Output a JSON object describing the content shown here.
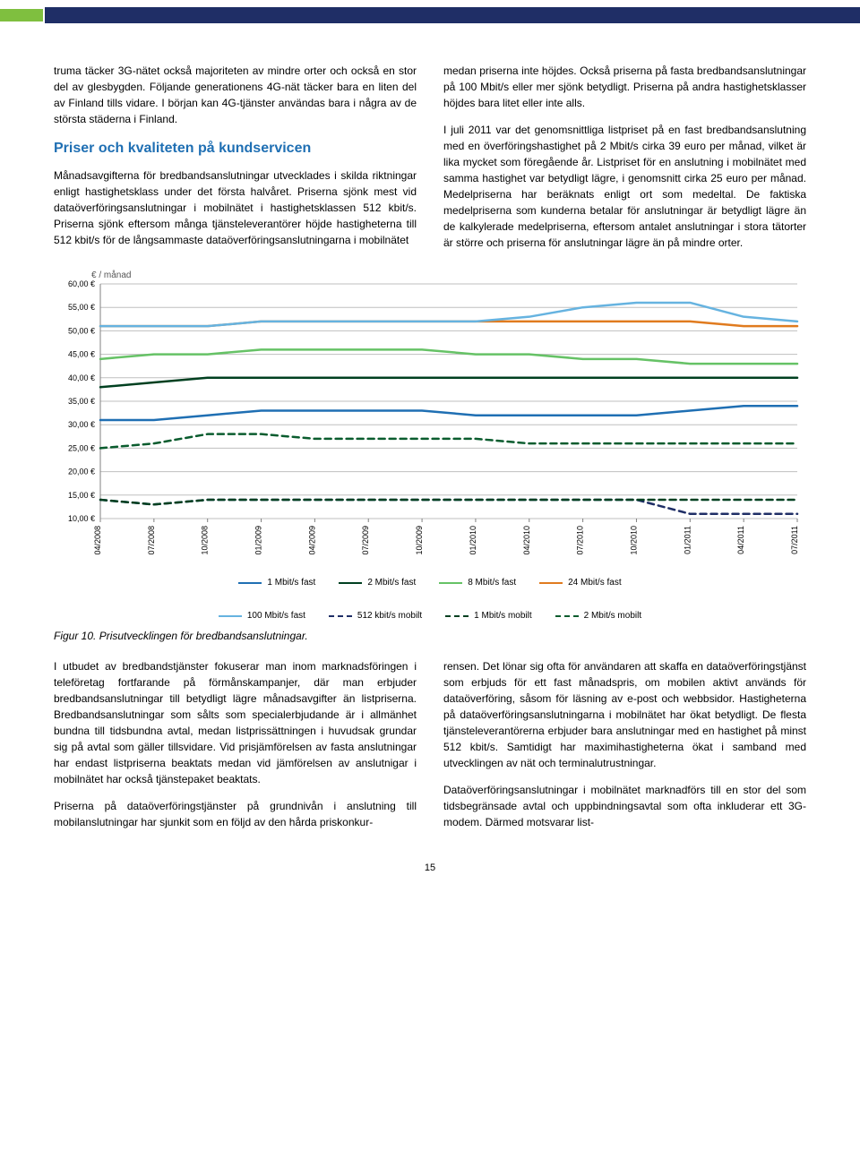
{
  "topbar": {
    "green": "#7fbf3f",
    "blue": "#1f2e66"
  },
  "top": {
    "left_p1": "truma täcker 3G-nätet också majoriteten av mindre orter och också en stor del av glesbygden. Följande generationens 4G-nät täcker bara en liten del av Finland tills vidare. I början kan 4G-tjänster användas bara i några av de största städerna i Finland.",
    "heading": "Priser och kvaliteten på kundservicen",
    "left_p2": "Månadsavgifterna för bredbandsanslutningar utvecklades i skilda riktningar enligt hastighetsklass under det första halvåret. Priserna sjönk mest vid dataöverföringsanslutningar i mobilnätet i hastighetsklassen 512 kbit/s. Priserna sjönk eftersom många tjänsteleverantörer höjde hastigheterna till 512 kbit/s för de långsammaste dataöverföringsanslutningarna i mobilnätet",
    "right_p1": "medan priserna inte höjdes. Också priserna på fasta bredbandsanslutningar på 100 Mbit/s eller mer sjönk betydligt. Priserna på andra hastighetsklasser höjdes bara litet eller inte alls.",
    "right_p2": "I juli 2011 var det genomsnittliga listpriset på en fast bredbandsanslutning med en överföringshastighet på 2 Mbit/s cirka 39 euro per månad, vilket är lika mycket som föregående år. Listpriset för en anslutning i mobilnätet med samma hastighet var betydligt lägre, i genomsnitt cirka 25 euro per månad. Medelpriserna har beräknats enligt ort som medeltal. De faktiska medelpriserna som kunderna betalar för anslutningar är betydligt lägre än de kalkylerade medelpriserna, eftersom antalet anslutningar i stora tätorter är större och priserna för anslutningar lägre än på mindre orter."
  },
  "chart": {
    "yaxis_label": "€ / månad",
    "ylim": [
      10,
      60
    ],
    "ytick_step": 5,
    "yticks": [
      "10,00 €",
      "15,00 €",
      "20,00 €",
      "25,00 €",
      "30,00 €",
      "35,00 €",
      "40,00 €",
      "45,00 €",
      "50,00 €",
      "55,00 €",
      "60,00 €"
    ],
    "xlabels": [
      "04/2008",
      "07/2008",
      "10/2008",
      "01/2009",
      "04/2009",
      "07/2009",
      "10/2009",
      "01/2010",
      "04/2010",
      "07/2010",
      "10/2010",
      "01/2011",
      "04/2011",
      "07/2011"
    ],
    "grid_color": "#bfbfbf",
    "axis_color": "#808080",
    "background": "#ffffff",
    "label_font": 9,
    "xlabel_font": 9,
    "line_width": 2.5,
    "series": [
      {
        "name": "1 Mbit/s fast",
        "color": "#1f6fb3",
        "dashed": false,
        "values": [
          31,
          31,
          32,
          33,
          33,
          33,
          33,
          32,
          32,
          32,
          32,
          33,
          34,
          34
        ]
      },
      {
        "name": "2 Mbit/s fast",
        "color": "#004020",
        "dashed": false,
        "values": [
          38,
          39,
          40,
          40,
          40,
          40,
          40,
          40,
          40,
          40,
          40,
          40,
          40,
          40
        ]
      },
      {
        "name": "8 Mbit/s fast",
        "color": "#66c266",
        "dashed": false,
        "values": [
          44,
          45,
          45,
          46,
          46,
          46,
          46,
          45,
          45,
          44,
          44,
          43,
          43,
          43
        ]
      },
      {
        "name": "24 Mbit/s fast",
        "color": "#e07b1f",
        "dashed": false,
        "values": [
          51,
          51,
          51,
          52,
          52,
          52,
          52,
          52,
          52,
          52,
          52,
          52,
          51,
          51
        ]
      },
      {
        "name": "100 Mbit/s fast",
        "color": "#66b3e0",
        "dashed": false,
        "values": [
          51,
          51,
          51,
          52,
          52,
          52,
          52,
          52,
          53,
          55,
          56,
          56,
          53,
          52
        ]
      },
      {
        "name": "512 kbit/s mobilt",
        "color": "#1f2e66",
        "dashed": true,
        "values": [
          14,
          13,
          14,
          14,
          14,
          14,
          14,
          14,
          14,
          14,
          14,
          11,
          11,
          11
        ]
      },
      {
        "name": "1 Mbit/s mobilt",
        "color": "#004020",
        "dashed": true,
        "values": [
          14,
          13,
          14,
          14,
          14,
          14,
          14,
          14,
          14,
          14,
          14,
          14,
          14,
          14
        ]
      },
      {
        "name": "2 Mbit/s mobilt",
        "color": "#0a5c2e",
        "dashed": true,
        "values": [
          25,
          26,
          28,
          28,
          27,
          27,
          27,
          27,
          26,
          26,
          26,
          26,
          26,
          26
        ]
      }
    ],
    "legend": [
      {
        "label": "1 Mbit/s fast",
        "color": "#1f6fb3",
        "dashed": false
      },
      {
        "label": "2 Mbit/s fast",
        "color": "#004020",
        "dashed": false
      },
      {
        "label": "8 Mbit/s fast",
        "color": "#66c266",
        "dashed": false
      },
      {
        "label": "24 Mbit/s fast",
        "color": "#e07b1f",
        "dashed": false
      },
      {
        "label": "100 Mbit/s fast",
        "color": "#66b3e0",
        "dashed": false
      },
      {
        "label": "512 kbit/s mobilt",
        "color": "#1f2e66",
        "dashed": true
      },
      {
        "label": "1 Mbit/s mobilt",
        "color": "#004020",
        "dashed": true
      },
      {
        "label": "2 Mbit/s mobilt",
        "color": "#0a5c2e",
        "dashed": true
      }
    ]
  },
  "caption": "Figur 10. Prisutvecklingen för bredbandsanslutningar.",
  "bottom": {
    "left_p1": "I utbudet av bredbandstjänster fokuserar man inom marknadsföringen i teleföretag fortfarande på förmånskampanjer, där man erbjuder bredbandsanslutningar till betydligt lägre månadsavgifter än listpriserna. Bredbandsanslutningar som sålts som specialerbjudande är i allmänhet bundna till tidsbundna avtal, medan listprissättningen i huvudsak grundar sig på avtal som gäller tillsvidare. Vid prisjämförelsen av fasta anslutningar har endast listpriserna beaktats medan vid jämförelsen av anslutnigar i mobilnätet har också tjänstepaket beaktats.",
    "left_p2": "Priserna på dataöverföringstjänster på grundnivån i anslutning till mobilanslutningar har sjunkit som en följd av den hårda priskonkur-",
    "right_p1": "rensen. Det lönar sig ofta för användaren att skaffa en dataöverföringstjänst som erbjuds för ett fast månadspris, om mobilen aktivt används för dataöverföring, såsom för läsning av e-post och webbsidor. Hastigheterna på dataöverföringsanslutningarna i mobilnätet har ökat betydligt. De flesta tjänsteleverantörerna erbjuder bara anslutningar med en hastighet på minst 512 kbit/s. Samtidigt har maximihastigheterna ökat i samband med utvecklingen av nät och terminalutrustningar.",
    "right_p2": "Dataöverföringsanslutningar i mobilnätet marknadförs till en stor del som tidsbegränsade avtal och uppbindningsavtal som ofta inkluderar ett 3G-modem. Därmed motsvarar list-"
  },
  "pagenum": "15"
}
